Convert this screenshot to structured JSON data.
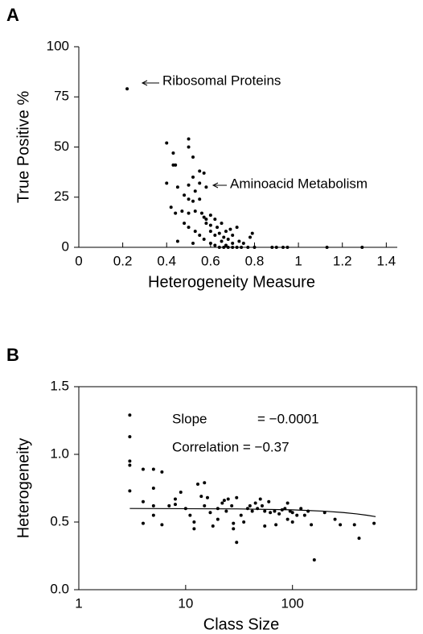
{
  "chart_data": [
    {
      "type": "scatter",
      "panel_label": "A",
      "x_label": "Heterogeneity Measure",
      "y_label": "True Positive %",
      "xlim": [
        0,
        1.45
      ],
      "ylim": [
        0,
        100
      ],
      "xticks": [
        0,
        0.2,
        0.4,
        0.6,
        0.8,
        1,
        1.2,
        1.4
      ],
      "yticks": [
        0,
        25,
        50,
        75,
        100
      ],
      "frame": false,
      "annotations": [
        "Ribosomal Proteins",
        "Aminoacid Metabolism"
      ],
      "series": [
        {
          "color": "#000000",
          "x": [
            0.22,
            0.4,
            0.4,
            0.43,
            0.43,
            0.44,
            0.5,
            0.5,
            0.52,
            0.55,
            0.57,
            0.55,
            0.52,
            0.5,
            0.53,
            0.58,
            0.45,
            0.48,
            0.5,
            0.52,
            0.55,
            0.42,
            0.44,
            0.47,
            0.5,
            0.53,
            0.56,
            0.57,
            0.58,
            0.6,
            0.62,
            0.58,
            0.6,
            0.63,
            0.65,
            0.67,
            0.69,
            0.72,
            0.6,
            0.62,
            0.64,
            0.66,
            0.68,
            0.7,
            0.73,
            0.75,
            0.78,
            0.79,
            0.48,
            0.5,
            0.53,
            0.55,
            0.57,
            0.45,
            0.52,
            0.6,
            0.62,
            0.64,
            0.66,
            0.68,
            0.7,
            0.72,
            0.74,
            0.77,
            0.8,
            0.88,
            0.9,
            0.93,
            0.95,
            1.13,
            1.29,
            0.65,
            0.7,
            0.67
          ],
          "values": [
            79,
            52,
            32,
            47,
            41,
            41,
            54,
            50,
            45,
            38,
            37,
            32,
            35,
            31,
            28,
            30,
            30,
            26,
            24,
            23,
            24,
            20,
            17,
            18,
            17,
            18,
            17,
            15,
            14,
            16,
            14,
            12,
            11,
            10,
            12,
            8,
            9,
            10,
            8,
            6,
            7,
            5,
            4,
            6,
            3,
            2,
            5,
            7,
            12,
            10,
            8,
            6,
            4,
            3,
            2,
            2,
            1,
            0,
            0,
            0,
            0,
            0,
            0,
            0,
            0,
            0,
            0,
            0,
            0,
            0,
            0,
            3,
            2,
            1
          ]
        }
      ]
    },
    {
      "type": "scatter",
      "panel_label": "B",
      "x_label": "Class Size",
      "y_label": "Heterogeneity",
      "xscale": "log",
      "xlim": [
        1,
        1450
      ],
      "ylim": [
        0,
        1.5
      ],
      "xticks": [
        1,
        10,
        100
      ],
      "yticks": [
        {
          "value": 0,
          "label": "0.0"
        },
        0.5,
        {
          "value": 1,
          "label": "1.0"
        },
        1.5
      ],
      "frame": true,
      "annotations": [
        "Slope",
        "= −0.0001",
        "Correlation = −0.37"
      ],
      "fit_line": {
        "x": [
          3,
          30,
          100,
          200,
          300,
          400,
          500,
          600
        ],
        "values": [
          0.6,
          0.597,
          0.59,
          0.58,
          0.57,
          0.56,
          0.55,
          0.54
        ]
      },
      "series": [
        {
          "color": "#000000",
          "x": [
            3,
            3,
            3,
            3,
            3,
            4,
            4,
            4,
            5,
            5,
            5,
            5,
            6,
            6,
            7,
            8,
            8,
            9,
            10,
            11,
            12,
            12,
            13,
            14,
            15,
            15,
            16,
            17,
            18,
            20,
            20,
            22,
            23,
            24,
            25,
            27,
            28,
            28,
            30,
            30,
            33,
            35,
            38,
            40,
            42,
            45,
            47,
            50,
            52,
            55,
            55,
            60,
            62,
            68,
            70,
            75,
            80,
            85,
            90,
            90,
            95,
            100,
            100,
            110,
            120,
            130,
            140,
            150,
            160,
            200,
            250,
            280,
            380,
            420,
            580
          ],
          "values": [
            1.29,
            1.13,
            0.95,
            0.92,
            0.73,
            0.89,
            0.65,
            0.49,
            0.89,
            0.75,
            0.62,
            0.55,
            0.87,
            0.48,
            0.62,
            0.63,
            0.67,
            0.72,
            0.6,
            0.55,
            0.45,
            0.5,
            0.78,
            0.69,
            0.79,
            0.62,
            0.68,
            0.57,
            0.47,
            0.6,
            0.52,
            0.64,
            0.66,
            0.58,
            0.67,
            0.62,
            0.49,
            0.45,
            0.68,
            0.35,
            0.55,
            0.5,
            0.6,
            0.62,
            0.58,
            0.64,
            0.6,
            0.67,
            0.62,
            0.58,
            0.47,
            0.65,
            0.57,
            0.58,
            0.48,
            0.56,
            0.59,
            0.6,
            0.64,
            0.52,
            0.58,
            0.57,
            0.5,
            0.55,
            0.6,
            0.55,
            0.58,
            0.48,
            0.22,
            0.57,
            0.52,
            0.48,
            0.48,
            0.38,
            0.49
          ]
        }
      ]
    }
  ]
}
